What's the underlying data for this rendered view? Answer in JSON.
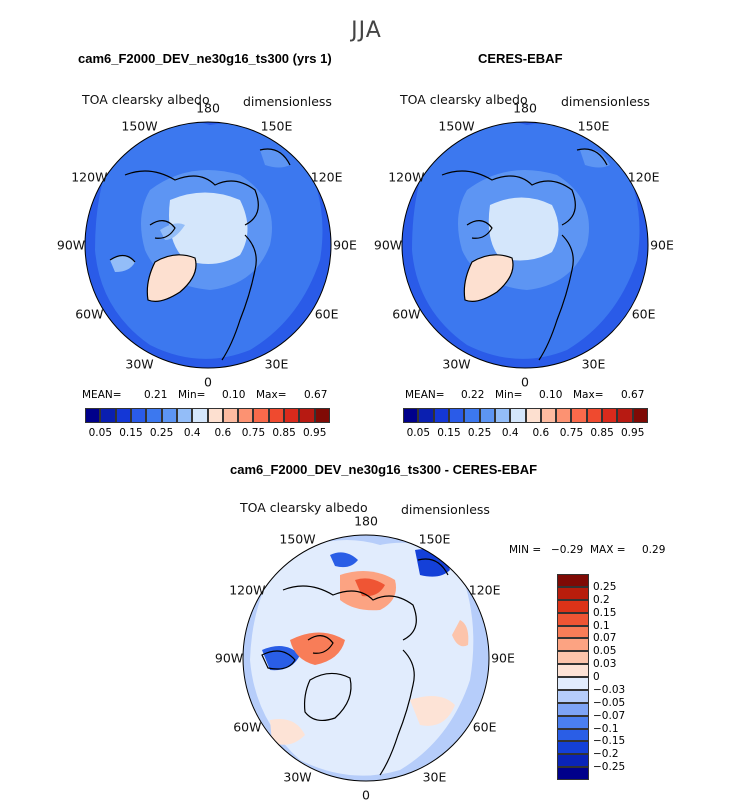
{
  "season": "JJA",
  "maps": [
    {
      "title": "cam6_F2000_DEV_ne30g16_ts300 (yrs 1)",
      "variable": "TOA clearsky albedo",
      "units": "dimensionless",
      "stats": {
        "mean_label": "MEAN=",
        "mean": "0.21",
        "min_label": "Min=",
        "min": "0.10",
        "max_label": "Max=",
        "max": "0.67"
      }
    },
    {
      "title": "CERES-EBAF",
      "variable": "TOA clearsky albedo",
      "units": "dimensionless",
      "stats": {
        "mean_label": "MEAN=",
        "mean": "0.22",
        "min_label": "Min=",
        "min": "0.10",
        "max_label": "Max=",
        "max": "0.67"
      }
    },
    {
      "title": "cam6_F2000_DEV_ne30g16_ts300 - CERES-EBAF",
      "variable": "TOA clearsky albedo",
      "units": "dimensionless",
      "stats": {
        "min_label": "MIN =",
        "min": "−0.29",
        "max_label": "MAX =",
        "max": "0.29"
      }
    }
  ],
  "lon_labels": [
    "180",
    "150E",
    "120E",
    "90E",
    "60E",
    "30E",
    "0",
    "30W",
    "60W",
    "90W",
    "120W",
    "150W"
  ],
  "colorbar_abs": {
    "colors": [
      "#00008b",
      "#0a1fb0",
      "#1437d6",
      "#2a5be8",
      "#3c78ef",
      "#5d95f3",
      "#93bdf8",
      "#d4e6fb",
      "#fde0d0",
      "#fcbba1",
      "#fc9272",
      "#f96a4b",
      "#ef4a2f",
      "#d92a1c",
      "#b71a12",
      "#7f0a05"
    ],
    "ticks": [
      "0.05",
      "0.15",
      "0.25",
      "0.4",
      "0.6",
      "0.75",
      "0.85",
      "0.95"
    ]
  },
  "colorbar_diff": {
    "colors": [
      "#00008b",
      "#0a24b8",
      "#1440d8",
      "#2a5ee6",
      "#4b7ff0",
      "#7ea4f5",
      "#b6cdfa",
      "#e1ecfd",
      "#fde3d6",
      "#fcc4ab",
      "#fca382",
      "#f87d58",
      "#ef5534",
      "#dc3318",
      "#b81d0c",
      "#7f0a05"
    ],
    "ticks": [
      "0.25",
      "0.2",
      "0.15",
      "0.1",
      "0.07",
      "0.05",
      "0.03",
      "0",
      "−0.03",
      "−0.05",
      "−0.07",
      "−0.1",
      "−0.15",
      "−0.2",
      "−0.25"
    ]
  }
}
